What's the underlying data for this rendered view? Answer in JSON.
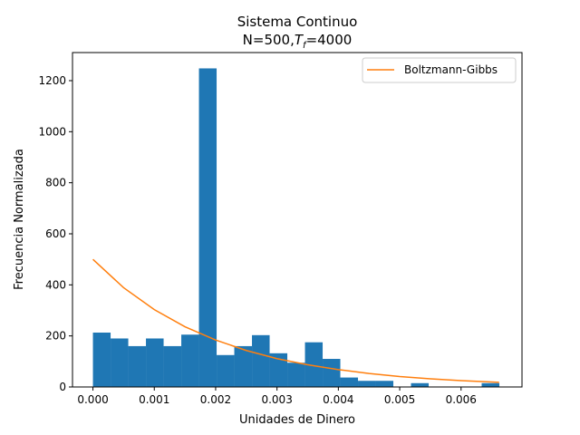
{
  "chart_data": {
    "type": "bar",
    "title": "Sistema Continuo",
    "subtitle": {
      "prefix": "N=500,",
      "var": "T",
      "sub": "f",
      "suffix": "=4000"
    },
    "xlabel": "Unidades de Dinero",
    "ylabel": "Frecuencia Normalizada",
    "xlim": [
      -0.000333,
      0.006993
    ],
    "ylim": [
      0,
      1310
    ],
    "xticks": [
      0.0,
      0.001,
      0.002,
      0.003,
      0.004,
      0.005,
      0.006
    ],
    "xtick_labels": [
      "0.000",
      "0.001",
      "0.002",
      "0.003",
      "0.004",
      "0.005",
      "0.006"
    ],
    "yticks": [
      0,
      200,
      400,
      600,
      800,
      1000,
      1200
    ],
    "ytick_labels": [
      "0",
      "200",
      "400",
      "600",
      "800",
      "1000",
      "1200"
    ],
    "bin_width": 0.000288,
    "bin_start": 0.0,
    "hist_values": [
      213,
      190,
      160,
      190,
      160,
      205,
      1248,
      125,
      160,
      203,
      132,
      95,
      175,
      110,
      37,
      24,
      24,
      0,
      15,
      0,
      0,
      0,
      15
    ],
    "hist_color": "#1f77b4",
    "series": [
      {
        "name": "Boltzmann-Gibbs",
        "type": "line",
        "color": "#ff7f0e",
        "x": [
          0.0,
          0.0005,
          0.001,
          0.0015,
          0.002,
          0.0025,
          0.003,
          0.0035,
          0.004,
          0.0045,
          0.005,
          0.0055,
          0.006,
          0.00662
        ],
        "y": [
          500,
          389,
          303,
          236,
          184,
          143,
          111,
          87,
          68,
          53,
          41,
          32,
          25,
          18
        ]
      }
    ],
    "legend_position": "top-right",
    "grid": false
  }
}
